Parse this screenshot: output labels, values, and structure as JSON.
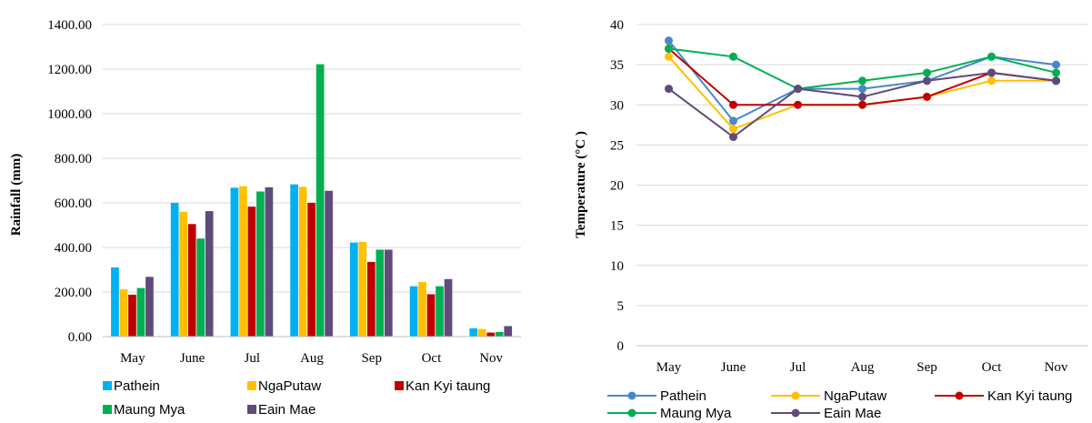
{
  "chart_data": [
    {
      "type": "bar",
      "ylabel": "Rainfall (mm)",
      "categories": [
        "May",
        "June",
        "Jul",
        "Aug",
        "Sep",
        "Oct",
        "Nov"
      ],
      "ylim": [
        0,
        1400
      ],
      "yticks": [
        "0.00",
        "200.00",
        "400.00",
        "600.00",
        "800.00",
        "1000.00",
        "1200.00",
        "1400.00"
      ],
      "grid": true,
      "legend_position": "bottom",
      "series": [
        {
          "name": "Pathein",
          "color": "#00b0f0",
          "values": [
            310,
            600,
            668,
            683,
            422,
            226,
            37
          ]
        },
        {
          "name": "NgaPutaw",
          "color": "#ffc000",
          "values": [
            212,
            560,
            675,
            672,
            425,
            245,
            34
          ]
        },
        {
          "name": "Kan Kyi taung",
          "color": "#c00000",
          "values": [
            188,
            505,
            583,
            600,
            335,
            190,
            18
          ]
        },
        {
          "name": "Maung Mya",
          "color": "#00b050",
          "values": [
            218,
            440,
            651,
            1222,
            390,
            226,
            21
          ]
        },
        {
          "name": "Eain Mae",
          "color": "#604a7b",
          "values": [
            268,
            563,
            670,
            654,
            390,
            258,
            47
          ]
        }
      ]
    },
    {
      "type": "line",
      "ylabel": "Temperature (°C )",
      "categories": [
        "May",
        "June",
        "Jul",
        "Aug",
        "Sep",
        "Oct",
        "Nov"
      ],
      "ylim": [
        0,
        40
      ],
      "yticks": [
        "0",
        "5",
        "10",
        "15",
        "20",
        "25",
        "30",
        "35",
        "40"
      ],
      "grid": true,
      "legend_position": "bottom",
      "series": [
        {
          "name": "Pathein",
          "color": "#4a86c8",
          "values": [
            38,
            28,
            32,
            32,
            33,
            36,
            35
          ]
        },
        {
          "name": "NgaPutaw",
          "color": "#ffc000",
          "values": [
            36,
            27,
            30,
            30,
            31,
            33,
            33
          ]
        },
        {
          "name": "Kan Kyi taung",
          "color": "#c00000",
          "values": [
            37,
            30,
            30,
            30,
            31,
            34,
            33
          ]
        },
        {
          "name": "Maung Mya",
          "color": "#00b050",
          "values": [
            37,
            36,
            32,
            33,
            34,
            36,
            34
          ]
        },
        {
          "name": "Eain Mae",
          "color": "#604a7b",
          "values": [
            32,
            26,
            32,
            31,
            33,
            34,
            33
          ]
        }
      ]
    }
  ]
}
